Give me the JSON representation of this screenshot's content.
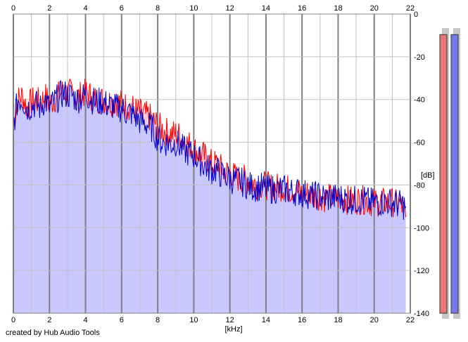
{
  "credit": "created by Hub Audio Tools",
  "colors": {
    "background": "#ffffff",
    "grid": "#c0c0c0",
    "grid_major": "#808080",
    "channel_left_line": "#ff0000",
    "channel_left_fill": "#ffc8d2",
    "channel_right_line": "#0000cc",
    "channel_right_fill": "#c8c8ff",
    "meter_left": "#e87878",
    "meter_right": "#7878e8"
  },
  "chart_data": {
    "type": "area",
    "xlabel": "[kHz]",
    "ylabel": "[dB]",
    "xlim": [
      0,
      22
    ],
    "ylim": [
      -140,
      0
    ],
    "x_ticks": [
      "0",
      "2",
      "4",
      "6",
      "8",
      "10",
      "12",
      "14",
      "16",
      "18",
      "20",
      "22"
    ],
    "y_ticks": [
      "0",
      "-20",
      "-40",
      "-60",
      "-80",
      "-100",
      "-120",
      "-140"
    ],
    "grid": true,
    "x_step_khz": 0.25,
    "series": [
      {
        "color": "#ff0000",
        "values": [
          -52,
          -40,
          -38,
          -44,
          -41,
          -40,
          -42,
          -38,
          -42,
          -40,
          -38,
          -36,
          -37,
          -37,
          -39,
          -38,
          -37,
          -38,
          -40,
          -40,
          -40,
          -41,
          -41,
          -41,
          -42,
          -43,
          -43,
          -45,
          -46,
          -47,
          -48,
          -50,
          -52,
          -54,
          -55,
          -56,
          -56,
          -57,
          -60,
          -61,
          -63,
          -65,
          -66,
          -68,
          -70,
          -70,
          -72,
          -74,
          -74,
          -76,
          -77,
          -77,
          -78,
          -79,
          -80,
          -80,
          -80,
          -81,
          -81,
          -81,
          -81,
          -82,
          -82,
          -83,
          -84,
          -84,
          -85,
          -85,
          -85,
          -86,
          -86,
          -86,
          -86,
          -86,
          -87,
          -87,
          -87,
          -87,
          -87,
          -88,
          -88,
          -88,
          -88,
          -88,
          -88,
          -89,
          -89,
          -95
        ]
      },
      {
        "color": "#0000cc",
        "values": [
          -52,
          -40,
          -40,
          -44,
          -43,
          -42,
          -44,
          -40,
          -44,
          -41,
          -39,
          -37,
          -38,
          -38,
          -40,
          -39,
          -38,
          -39,
          -41,
          -41,
          -41,
          -43,
          -43,
          -44,
          -44,
          -46,
          -46,
          -48,
          -50,
          -51,
          -52,
          -54,
          -58,
          -60,
          -60,
          -61,
          -60,
          -62,
          -64,
          -65,
          -66,
          -68,
          -70,
          -72,
          -73,
          -73,
          -75,
          -76,
          -77,
          -78,
          -78,
          -79,
          -80,
          -81,
          -81,
          -81,
          -82,
          -82,
          -82,
          -82,
          -82,
          -83,
          -83,
          -83,
          -84,
          -84,
          -85,
          -85,
          -85,
          -86,
          -86,
          -86,
          -86,
          -86,
          -87,
          -87,
          -87,
          -87,
          -87,
          -88,
          -88,
          -88,
          -88,
          -88,
          -88,
          -89,
          -89,
          -90
        ]
      }
    ],
    "meters": [
      {
        "channel": "left",
        "level_db": -6
      },
      {
        "channel": "right",
        "level_db": -6
      }
    ]
  }
}
